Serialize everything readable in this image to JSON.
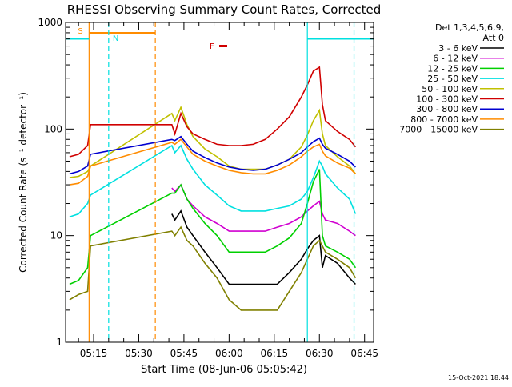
{
  "chart_data": {
    "type": "line",
    "title": "RHESSI Observing Summary Count Rates, Corrected",
    "xlabel": "Start Time (08-Jun-06 05:05:42)",
    "ylabel": "Corrected Count Rate (s⁻¹ detector⁻¹)",
    "yscale": "log",
    "ylim": [
      1,
      1000
    ],
    "xlim": [
      "05:05:42",
      "06:48:00"
    ],
    "x_ticks": [
      "05:15",
      "05:30",
      "05:45",
      "06:00",
      "06:15",
      "06:30",
      "06:45"
    ],
    "y_ticks": [
      "1",
      "10",
      "100",
      "1000"
    ],
    "legend_title": "Det 1,3,4,5,6,9,",
    "legend_subtitle": "Att 0",
    "legend_position": "right",
    "footer": "15-Oct-2021 18:44",
    "x": [
      "05:07",
      "05:10",
      "05:13",
      "05:14",
      "05:41",
      "05:42",
      "05:44",
      "05:46",
      "05:48",
      "05:52",
      "05:56",
      "06:00",
      "06:04",
      "06:08",
      "06:12",
      "06:16",
      "06:20",
      "06:24",
      "06:26",
      "06:28",
      "06:30",
      "06:31",
      "06:32",
      "06:36",
      "06:40",
      "06:42"
    ],
    "series": [
      {
        "name": "3 - 6 keV",
        "color": "#000000",
        "values": [
          null,
          null,
          null,
          null,
          16,
          14,
          17,
          12,
          10,
          7,
          5,
          3.5,
          3.5,
          3.5,
          3.5,
          3.5,
          4.5,
          6,
          7.5,
          9,
          10,
          5,
          6.5,
          5.5,
          4,
          3.5
        ]
      },
      {
        "name": "6 - 12 keV",
        "color": "#d000d0",
        "values": [
          null,
          null,
          null,
          null,
          28,
          26,
          30,
          22,
          19,
          15,
          13,
          11,
          11,
          11,
          11,
          12,
          13,
          15,
          17,
          19,
          21,
          16,
          14,
          13,
          11,
          10
        ]
      },
      {
        "name": "12 - 25 keV",
        "color": "#00d000",
        "values": [
          3.5,
          3.8,
          5,
          10,
          25,
          25,
          30,
          22,
          18,
          13,
          10,
          7,
          7,
          7,
          7,
          8,
          9.5,
          13,
          20,
          32,
          42,
          10,
          8,
          7,
          6,
          5
        ]
      },
      {
        "name": "25 - 50 keV",
        "color": "#00e0e0",
        "values": [
          15,
          16,
          20,
          24,
          70,
          60,
          70,
          52,
          42,
          30,
          24,
          19,
          17,
          17,
          17,
          18,
          19,
          22,
          26,
          35,
          50,
          45,
          38,
          28,
          22,
          16
        ]
      },
      {
        "name": "50 - 100 keV",
        "color": "#c0c000",
        "values": [
          35,
          36,
          40,
          45,
          140,
          120,
          160,
          110,
          85,
          65,
          55,
          45,
          42,
          42,
          42,
          46,
          52,
          68,
          88,
          120,
          150,
          90,
          70,
          55,
          45,
          38
        ]
      },
      {
        "name": "100 - 300 keV",
        "color": "#d00000",
        "values": [
          55,
          58,
          70,
          110,
          110,
          90,
          140,
          105,
          90,
          80,
          72,
          70,
          70,
          72,
          80,
          100,
          130,
          200,
          260,
          350,
          380,
          170,
          120,
          95,
          80,
          68
        ]
      },
      {
        "name": "300 - 800 keV",
        "color": "#0000d0",
        "values": [
          38,
          40,
          45,
          58,
          80,
          78,
          85,
          72,
          62,
          54,
          48,
          44,
          42,
          41,
          42,
          46,
          52,
          60,
          68,
          76,
          82,
          72,
          66,
          58,
          50,
          44
        ]
      },
      {
        "name": "800 - 7000 keV",
        "color": "#ff8c00",
        "values": [
          30,
          31,
          36,
          45,
          75,
          72,
          80,
          68,
          58,
          50,
          45,
          41,
          39,
          38,
          38,
          41,
          46,
          55,
          62,
          68,
          72,
          62,
          56,
          48,
          43,
          38
        ]
      },
      {
        "name": "7000 - 15000 keV",
        "color": "#808000",
        "values": [
          2.5,
          2.8,
          3,
          8,
          11,
          10,
          12,
          9,
          8,
          5.5,
          4,
          2.5,
          2,
          2,
          2,
          2,
          3,
          4.5,
          6,
          8,
          9,
          8,
          7,
          6,
          5,
          4
        ]
      }
    ],
    "markers": [
      {
        "label": "S",
        "color": "#ff8c00"
      },
      {
        "label": "N",
        "color": "#00e0e0"
      },
      {
        "label": "F",
        "color": "#d00000"
      }
    ]
  }
}
